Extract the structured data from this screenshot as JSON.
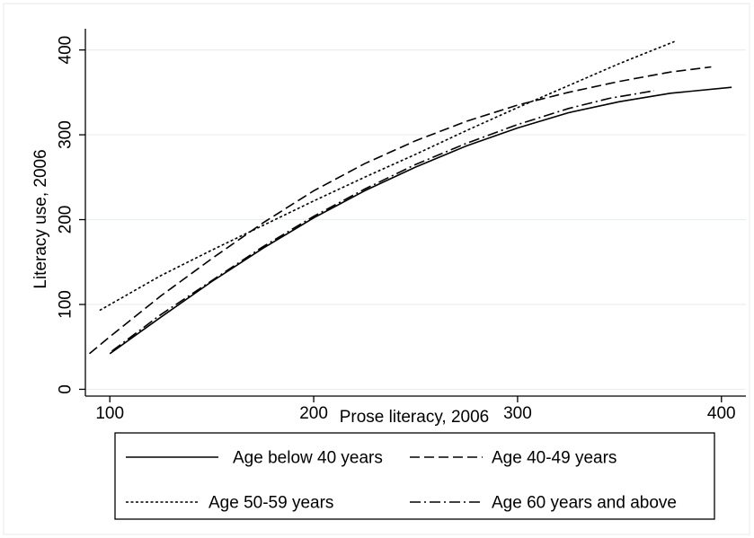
{
  "chart_data": {
    "type": "line",
    "title": "",
    "xlabel": "Prose literacy, 2006",
    "ylabel": "Literacy use, 2006",
    "xlim": [
      88,
      412
    ],
    "ylim": [
      -8,
      425
    ],
    "xticks": [
      100,
      200,
      300,
      400
    ],
    "yticks": [
      0,
      100,
      200,
      300,
      400
    ],
    "grid": "horizontal",
    "legend_position": "bottom",
    "series": [
      {
        "name": "Age below 40 years",
        "style": "solid",
        "x": [
          100,
          125,
          150,
          175,
          200,
          225,
          250,
          275,
          300,
          325,
          350,
          375,
          405
        ],
        "y": [
          42,
          85,
          127,
          166,
          202,
          234,
          262,
          287,
          308,
          326,
          339,
          349,
          356
        ]
      },
      {
        "name": "Age 40-49 years",
        "style": "dashed",
        "x": [
          90,
          100,
          125,
          150,
          175,
          200,
          225,
          250,
          275,
          300,
          325,
          350,
          375,
          395
        ],
        "y": [
          42,
          62,
          110,
          154,
          196,
          234,
          266,
          293,
          316,
          335,
          350,
          363,
          374,
          380
        ]
      },
      {
        "name": "Age 50-59 years",
        "style": "dotted",
        "x": [
          95,
          125,
          150,
          175,
          200,
          225,
          250,
          275,
          300,
          325,
          350,
          377
        ],
        "y": [
          93,
          134,
          164,
          193,
          222,
          250,
          277,
          305,
          332,
          358,
          384,
          410
        ]
      },
      {
        "name": "Age 60 years and above",
        "style": "dashdot",
        "x": [
          101,
          125,
          150,
          175,
          200,
          225,
          250,
          275,
          300,
          325,
          345,
          367
        ],
        "y": [
          45,
          88,
          128,
          168,
          204,
          236,
          265,
          290,
          312,
          331,
          343,
          352
        ]
      }
    ]
  }
}
